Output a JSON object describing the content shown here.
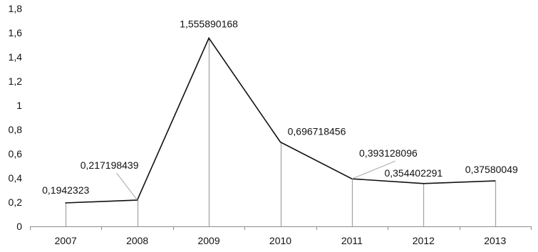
{
  "chart_data": {
    "type": "line",
    "title": "",
    "xlabel": "",
    "ylabel": "",
    "categories": [
      "2007",
      "2008",
      "2009",
      "2010",
      "2011",
      "2012",
      "2013"
    ],
    "values": [
      0.1942323,
      0.217198439,
      1.555890168,
      0.696718456,
      0.393128096,
      0.354402291,
      0.37580049
    ],
    "data_labels": [
      "0,1942323",
      "0,217198439",
      "1,555890168",
      "0,696718456",
      "0,393128096",
      "0,354402291",
      "0,37580049"
    ],
    "ylim": [
      0,
      1.8
    ],
    "yticks": [
      "0",
      "0,2",
      "0,4",
      "0,6",
      "0,8",
      "1",
      "1,2",
      "1,4",
      "1,6",
      "1,8"
    ],
    "grid": false,
    "drop_lines": true,
    "legend": "none",
    "colors": {
      "line": "#111111",
      "drop_line": "#a6a6a6",
      "axis": "#8c8c8c",
      "text": "#111111"
    }
  }
}
